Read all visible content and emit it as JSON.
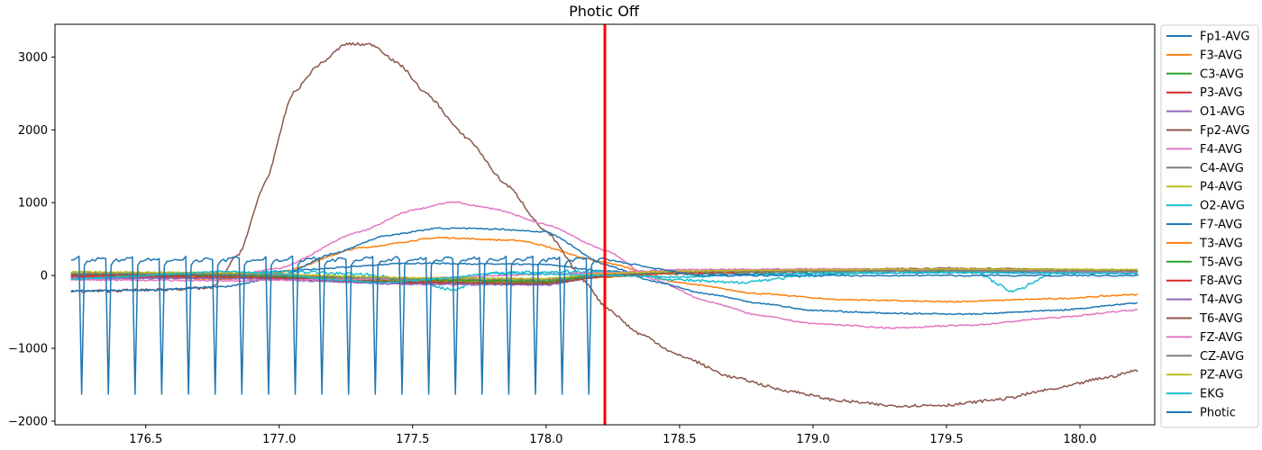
{
  "chart_data": {
    "type": "line",
    "title": "Photic Off",
    "xlabel": "",
    "ylabel": "",
    "xlim": [
      176.16,
      180.28
    ],
    "ylim": [
      -2050,
      3450
    ],
    "xticks": [
      176.5,
      177.0,
      177.5,
      178.0,
      178.5,
      179.0,
      179.5,
      180.0
    ],
    "xtick_labels": [
      "176.5",
      "177.0",
      "177.5",
      "178.0",
      "178.5",
      "179.0",
      "179.5",
      "180.0"
    ],
    "yticks": [
      -2000,
      -1000,
      0,
      1000,
      2000,
      3000
    ],
    "ytick_labels": [
      "−2000",
      "−1000",
      "0",
      "1000",
      "2000",
      "3000"
    ],
    "grid": false,
    "legend_position": "outside-right",
    "event_marker": {
      "x": 178.22,
      "color": "#ff0000"
    },
    "series": [
      {
        "name": "Fp1-AVG",
        "color": "#1f77b4",
        "points": [
          [
            176.22,
            -30
          ],
          [
            176.8,
            -40
          ],
          [
            177.0,
            60
          ],
          [
            177.5,
            170
          ],
          [
            178.0,
            150
          ],
          [
            178.22,
            60
          ],
          [
            178.5,
            20
          ],
          [
            179.0,
            30
          ],
          [
            179.5,
            40
          ],
          [
            180.22,
            30
          ]
        ]
      },
      {
        "name": "F3-AVG",
        "color": "#ff7f0e",
        "points": [
          [
            176.22,
            -20
          ],
          [
            176.8,
            -50
          ],
          [
            177.0,
            40
          ],
          [
            177.3,
            380
          ],
          [
            177.6,
            520
          ],
          [
            177.9,
            480
          ],
          [
            178.22,
            180
          ],
          [
            178.5,
            -100
          ],
          [
            178.8,
            -250
          ],
          [
            179.1,
            -330
          ],
          [
            179.5,
            -360
          ],
          [
            179.9,
            -320
          ],
          [
            180.22,
            -260
          ]
        ]
      },
      {
        "name": "C3-AVG",
        "color": "#2ca02c",
        "points": [
          [
            176.22,
            30
          ],
          [
            176.8,
            20
          ],
          [
            177.5,
            -60
          ],
          [
            178.0,
            -80
          ],
          [
            178.22,
            20
          ],
          [
            178.5,
            50
          ],
          [
            179.0,
            70
          ],
          [
            179.5,
            80
          ],
          [
            180.22,
            70
          ]
        ]
      },
      {
        "name": "P3-AVG",
        "color": "#d62728",
        "points": [
          [
            176.22,
            10
          ],
          [
            176.8,
            0
          ],
          [
            177.5,
            -80
          ],
          [
            178.0,
            -100
          ],
          [
            178.22,
            0
          ],
          [
            178.5,
            40
          ],
          [
            179.0,
            60
          ],
          [
            179.5,
            70
          ],
          [
            180.22,
            50
          ]
        ]
      },
      {
        "name": "O1-AVG",
        "color": "#9467bd",
        "points": [
          [
            176.22,
            0
          ],
          [
            176.8,
            -20
          ],
          [
            177.5,
            -100
          ],
          [
            178.0,
            -120
          ],
          [
            178.22,
            -10
          ],
          [
            178.5,
            40
          ],
          [
            179.0,
            60
          ],
          [
            179.5,
            60
          ],
          [
            180.22,
            40
          ]
        ]
      },
      {
        "name": "Fp2-AVG",
        "color": "#8c564b",
        "points": [
          [
            176.22,
            -220
          ],
          [
            176.5,
            -200
          ],
          [
            176.75,
            -170
          ],
          [
            176.85,
            300
          ],
          [
            176.95,
            1300
          ],
          [
            177.05,
            2500
          ],
          [
            177.15,
            2900
          ],
          [
            177.25,
            3180
          ],
          [
            177.35,
            3170
          ],
          [
            177.45,
            2900
          ],
          [
            177.55,
            2500
          ],
          [
            177.7,
            1900
          ],
          [
            177.85,
            1250
          ],
          [
            178.0,
            600
          ],
          [
            178.15,
            -100
          ],
          [
            178.22,
            -430
          ],
          [
            178.35,
            -800
          ],
          [
            178.5,
            -1100
          ],
          [
            178.7,
            -1400
          ],
          [
            178.9,
            -1580
          ],
          [
            179.1,
            -1720
          ],
          [
            179.3,
            -1790
          ],
          [
            179.5,
            -1780
          ],
          [
            179.7,
            -1700
          ],
          [
            179.9,
            -1560
          ],
          [
            180.1,
            -1400
          ],
          [
            180.22,
            -1300
          ]
        ]
      },
      {
        "name": "F4-AVG",
        "color": "#e377c2",
        "points": [
          [
            176.22,
            -50
          ],
          [
            176.8,
            -20
          ],
          [
            177.0,
            100
          ],
          [
            177.3,
            600
          ],
          [
            177.5,
            900
          ],
          [
            177.65,
            1010
          ],
          [
            177.8,
            920
          ],
          [
            178.0,
            700
          ],
          [
            178.22,
            350
          ],
          [
            178.4,
            -50
          ],
          [
            178.6,
            -350
          ],
          [
            178.8,
            -550
          ],
          [
            179.0,
            -660
          ],
          [
            179.3,
            -720
          ],
          [
            179.6,
            -680
          ],
          [
            179.9,
            -580
          ],
          [
            180.22,
            -470
          ]
        ]
      },
      {
        "name": "C4-AVG",
        "color": "#7f7f7f",
        "points": [
          [
            176.22,
            20
          ],
          [
            176.8,
            10
          ],
          [
            177.5,
            -50
          ],
          [
            178.0,
            -60
          ],
          [
            178.22,
            20
          ],
          [
            178.5,
            50
          ],
          [
            179.0,
            70
          ],
          [
            179.5,
            90
          ],
          [
            180.22,
            70
          ]
        ]
      },
      {
        "name": "P4-AVG",
        "color": "#bcbd22",
        "points": [
          [
            176.22,
            40
          ],
          [
            176.8,
            30
          ],
          [
            177.5,
            -40
          ],
          [
            178.0,
            -50
          ],
          [
            178.22,
            30
          ],
          [
            178.5,
            60
          ],
          [
            179.0,
            80
          ],
          [
            179.5,
            90
          ],
          [
            180.22,
            80
          ]
        ]
      },
      {
        "name": "O2-AVG",
        "color": "#17becf",
        "points": [
          [
            176.22,
            -40
          ],
          [
            176.5,
            -30
          ],
          [
            176.8,
            -10
          ],
          [
            177.0,
            60
          ],
          [
            177.3,
            20
          ],
          [
            177.5,
            -60
          ],
          [
            177.65,
            -200
          ],
          [
            177.8,
            30
          ],
          [
            178.0,
            50
          ],
          [
            178.22,
            60
          ],
          [
            178.5,
            -60
          ],
          [
            178.7,
            -100
          ],
          [
            179.0,
            0
          ],
          [
            179.3,
            70
          ],
          [
            179.6,
            60
          ],
          [
            179.75,
            -220
          ],
          [
            179.9,
            40
          ],
          [
            180.22,
            50
          ]
        ]
      },
      {
        "name": "F7-AVG",
        "color": "#1f77b4",
        "points": [
          [
            176.22,
            -210
          ],
          [
            176.5,
            -200
          ],
          [
            176.8,
            -150
          ],
          [
            177.0,
            -20
          ],
          [
            177.2,
            300
          ],
          [
            177.4,
            550
          ],
          [
            177.6,
            650
          ],
          [
            177.8,
            640
          ],
          [
            178.0,
            600
          ],
          [
            178.22,
            150
          ],
          [
            178.4,
            -80
          ],
          [
            178.6,
            -250
          ],
          [
            178.8,
            -380
          ],
          [
            179.0,
            -480
          ],
          [
            179.3,
            -520
          ],
          [
            179.6,
            -530
          ],
          [
            179.9,
            -480
          ],
          [
            180.22,
            -380
          ]
        ]
      },
      {
        "name": "T3-AVG",
        "color": "#ff7f0e",
        "points": [
          [
            176.22,
            0
          ],
          [
            176.8,
            -20
          ],
          [
            177.5,
            -80
          ],
          [
            178.0,
            -100
          ],
          [
            178.22,
            -20
          ],
          [
            178.5,
            30
          ],
          [
            179.0,
            60
          ],
          [
            179.5,
            70
          ],
          [
            180.22,
            60
          ]
        ]
      },
      {
        "name": "T5-AVG",
        "color": "#2ca02c",
        "points": [
          [
            176.22,
            20
          ],
          [
            176.8,
            0
          ],
          [
            177.5,
            -60
          ],
          [
            178.0,
            -80
          ],
          [
            178.22,
            0
          ],
          [
            178.5,
            40
          ],
          [
            179.0,
            60
          ],
          [
            179.5,
            70
          ],
          [
            180.22,
            60
          ]
        ]
      },
      {
        "name": "F8-AVG",
        "color": "#d62728",
        "points": [
          [
            176.22,
            -10
          ],
          [
            176.8,
            -30
          ],
          [
            177.5,
            -100
          ],
          [
            178.0,
            -110
          ],
          [
            178.22,
            -10
          ],
          [
            178.5,
            40
          ],
          [
            179.0,
            70
          ],
          [
            179.5,
            90
          ],
          [
            180.22,
            70
          ]
        ]
      },
      {
        "name": "T4-AVG",
        "color": "#9467bd",
        "points": [
          [
            176.22,
            -30
          ],
          [
            176.8,
            -40
          ],
          [
            177.5,
            -120
          ],
          [
            178.0,
            -130
          ],
          [
            178.22,
            0
          ],
          [
            178.5,
            60
          ],
          [
            179.0,
            80
          ],
          [
            179.5,
            90
          ],
          [
            180.22,
            60
          ]
        ]
      },
      {
        "name": "T6-AVG",
        "color": "#8c564b",
        "points": [
          [
            176.22,
            10
          ],
          [
            176.8,
            -10
          ],
          [
            177.5,
            -90
          ],
          [
            178.0,
            -110
          ],
          [
            178.22,
            -10
          ],
          [
            178.5,
            50
          ],
          [
            179.0,
            80
          ],
          [
            179.5,
            100
          ],
          [
            180.22,
            70
          ]
        ]
      },
      {
        "name": "FZ-AVG",
        "color": "#e377c2",
        "points": [
          [
            176.22,
            -60
          ],
          [
            176.8,
            -70
          ],
          [
            177.5,
            -40
          ],
          [
            178.0,
            20
          ],
          [
            178.22,
            40
          ],
          [
            178.5,
            80
          ],
          [
            179.0,
            90
          ],
          [
            179.5,
            80
          ],
          [
            180.22,
            50
          ]
        ]
      },
      {
        "name": "CZ-AVG",
        "color": "#7f7f7f",
        "points": [
          [
            176.22,
            30
          ],
          [
            176.8,
            20
          ],
          [
            177.5,
            -40
          ],
          [
            178.0,
            -50
          ],
          [
            178.22,
            20
          ],
          [
            178.5,
            50
          ],
          [
            179.0,
            60
          ],
          [
            179.5,
            70
          ],
          [
            180.22,
            60
          ]
        ]
      },
      {
        "name": "PZ-AVG",
        "color": "#bcbd22",
        "points": [
          [
            176.22,
            50
          ],
          [
            176.8,
            40
          ],
          [
            177.5,
            -30
          ],
          [
            178.0,
            -40
          ],
          [
            178.22,
            30
          ],
          [
            178.5,
            60
          ],
          [
            179.0,
            80
          ],
          [
            179.5,
            90
          ],
          [
            180.22,
            80
          ]
        ]
      },
      {
        "name": "EKG",
        "color": "#17becf",
        "points": [
          [
            176.22,
            -50
          ],
          [
            176.4,
            -20
          ],
          [
            176.6,
            20
          ],
          [
            176.8,
            60
          ],
          [
            177.0,
            20
          ],
          [
            177.2,
            -60
          ],
          [
            177.4,
            -100
          ],
          [
            177.6,
            -40
          ],
          [
            177.8,
            30
          ],
          [
            178.0,
            20
          ],
          [
            178.22,
            0
          ],
          [
            178.5,
            -20
          ],
          [
            179.0,
            30
          ],
          [
            179.5,
            40
          ],
          [
            180.22,
            30
          ]
        ]
      },
      {
        "name": "Photic",
        "color": "#1f77b4",
        "style": "pulse",
        "base": 230,
        "trough": -1630,
        "pulse_interval": 0.1,
        "first_pulse": 176.25,
        "last_pulse": 178.15,
        "after_value": 0,
        "x_end": 180.22
      }
    ]
  }
}
